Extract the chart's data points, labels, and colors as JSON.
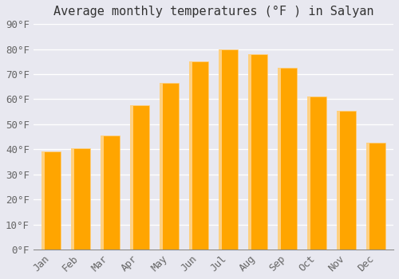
{
  "title": "Average monthly temperatures (°F ) in Salyan",
  "months": [
    "Jan",
    "Feb",
    "Mar",
    "Apr",
    "May",
    "Jun",
    "Jul",
    "Aug",
    "Sep",
    "Oct",
    "Nov",
    "Dec"
  ],
  "values": [
    39,
    40.5,
    45.5,
    57.5,
    66.5,
    75,
    80,
    78,
    72.5,
    61,
    55.5,
    42.5
  ],
  "bar_color_main": "#FFA500",
  "bar_color_edge": "#FFD080",
  "ylim": [
    0,
    90
  ],
  "yticks": [
    0,
    10,
    20,
    30,
    40,
    50,
    60,
    70,
    80,
    90
  ],
  "background_color": "#E8E8F0",
  "grid_color": "#FFFFFF",
  "title_fontsize": 11,
  "tick_fontsize": 9
}
